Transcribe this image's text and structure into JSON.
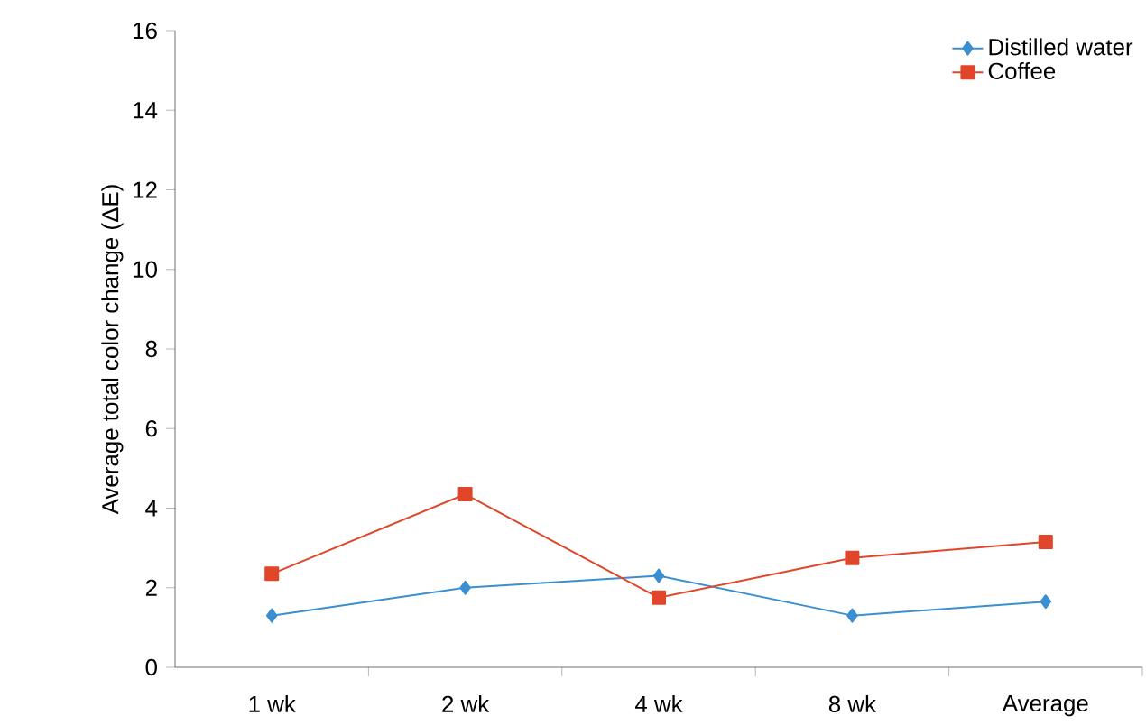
{
  "chart_data": {
    "type": "line",
    "ylabel": "Average total color change (ΔE)",
    "categories": [
      "1 wk",
      "2 wk",
      "4 wk",
      "8 wk",
      "Average"
    ],
    "series": [
      {
        "name": "Distilled water",
        "color": "#3a8fd0",
        "marker": "diamond",
        "values": [
          1.3,
          2.0,
          2.3,
          1.3,
          1.65
        ]
      },
      {
        "name": "Coffee",
        "color": "#e0462a",
        "marker": "square",
        "values": [
          2.35,
          4.35,
          1.75,
          2.75,
          3.15
        ]
      }
    ],
    "ylim": [
      0,
      16
    ],
    "yticks": [
      0,
      2,
      4,
      6,
      8,
      10,
      12,
      14,
      16
    ],
    "grid": false,
    "legend": "top right",
    "line_style": "solid"
  }
}
